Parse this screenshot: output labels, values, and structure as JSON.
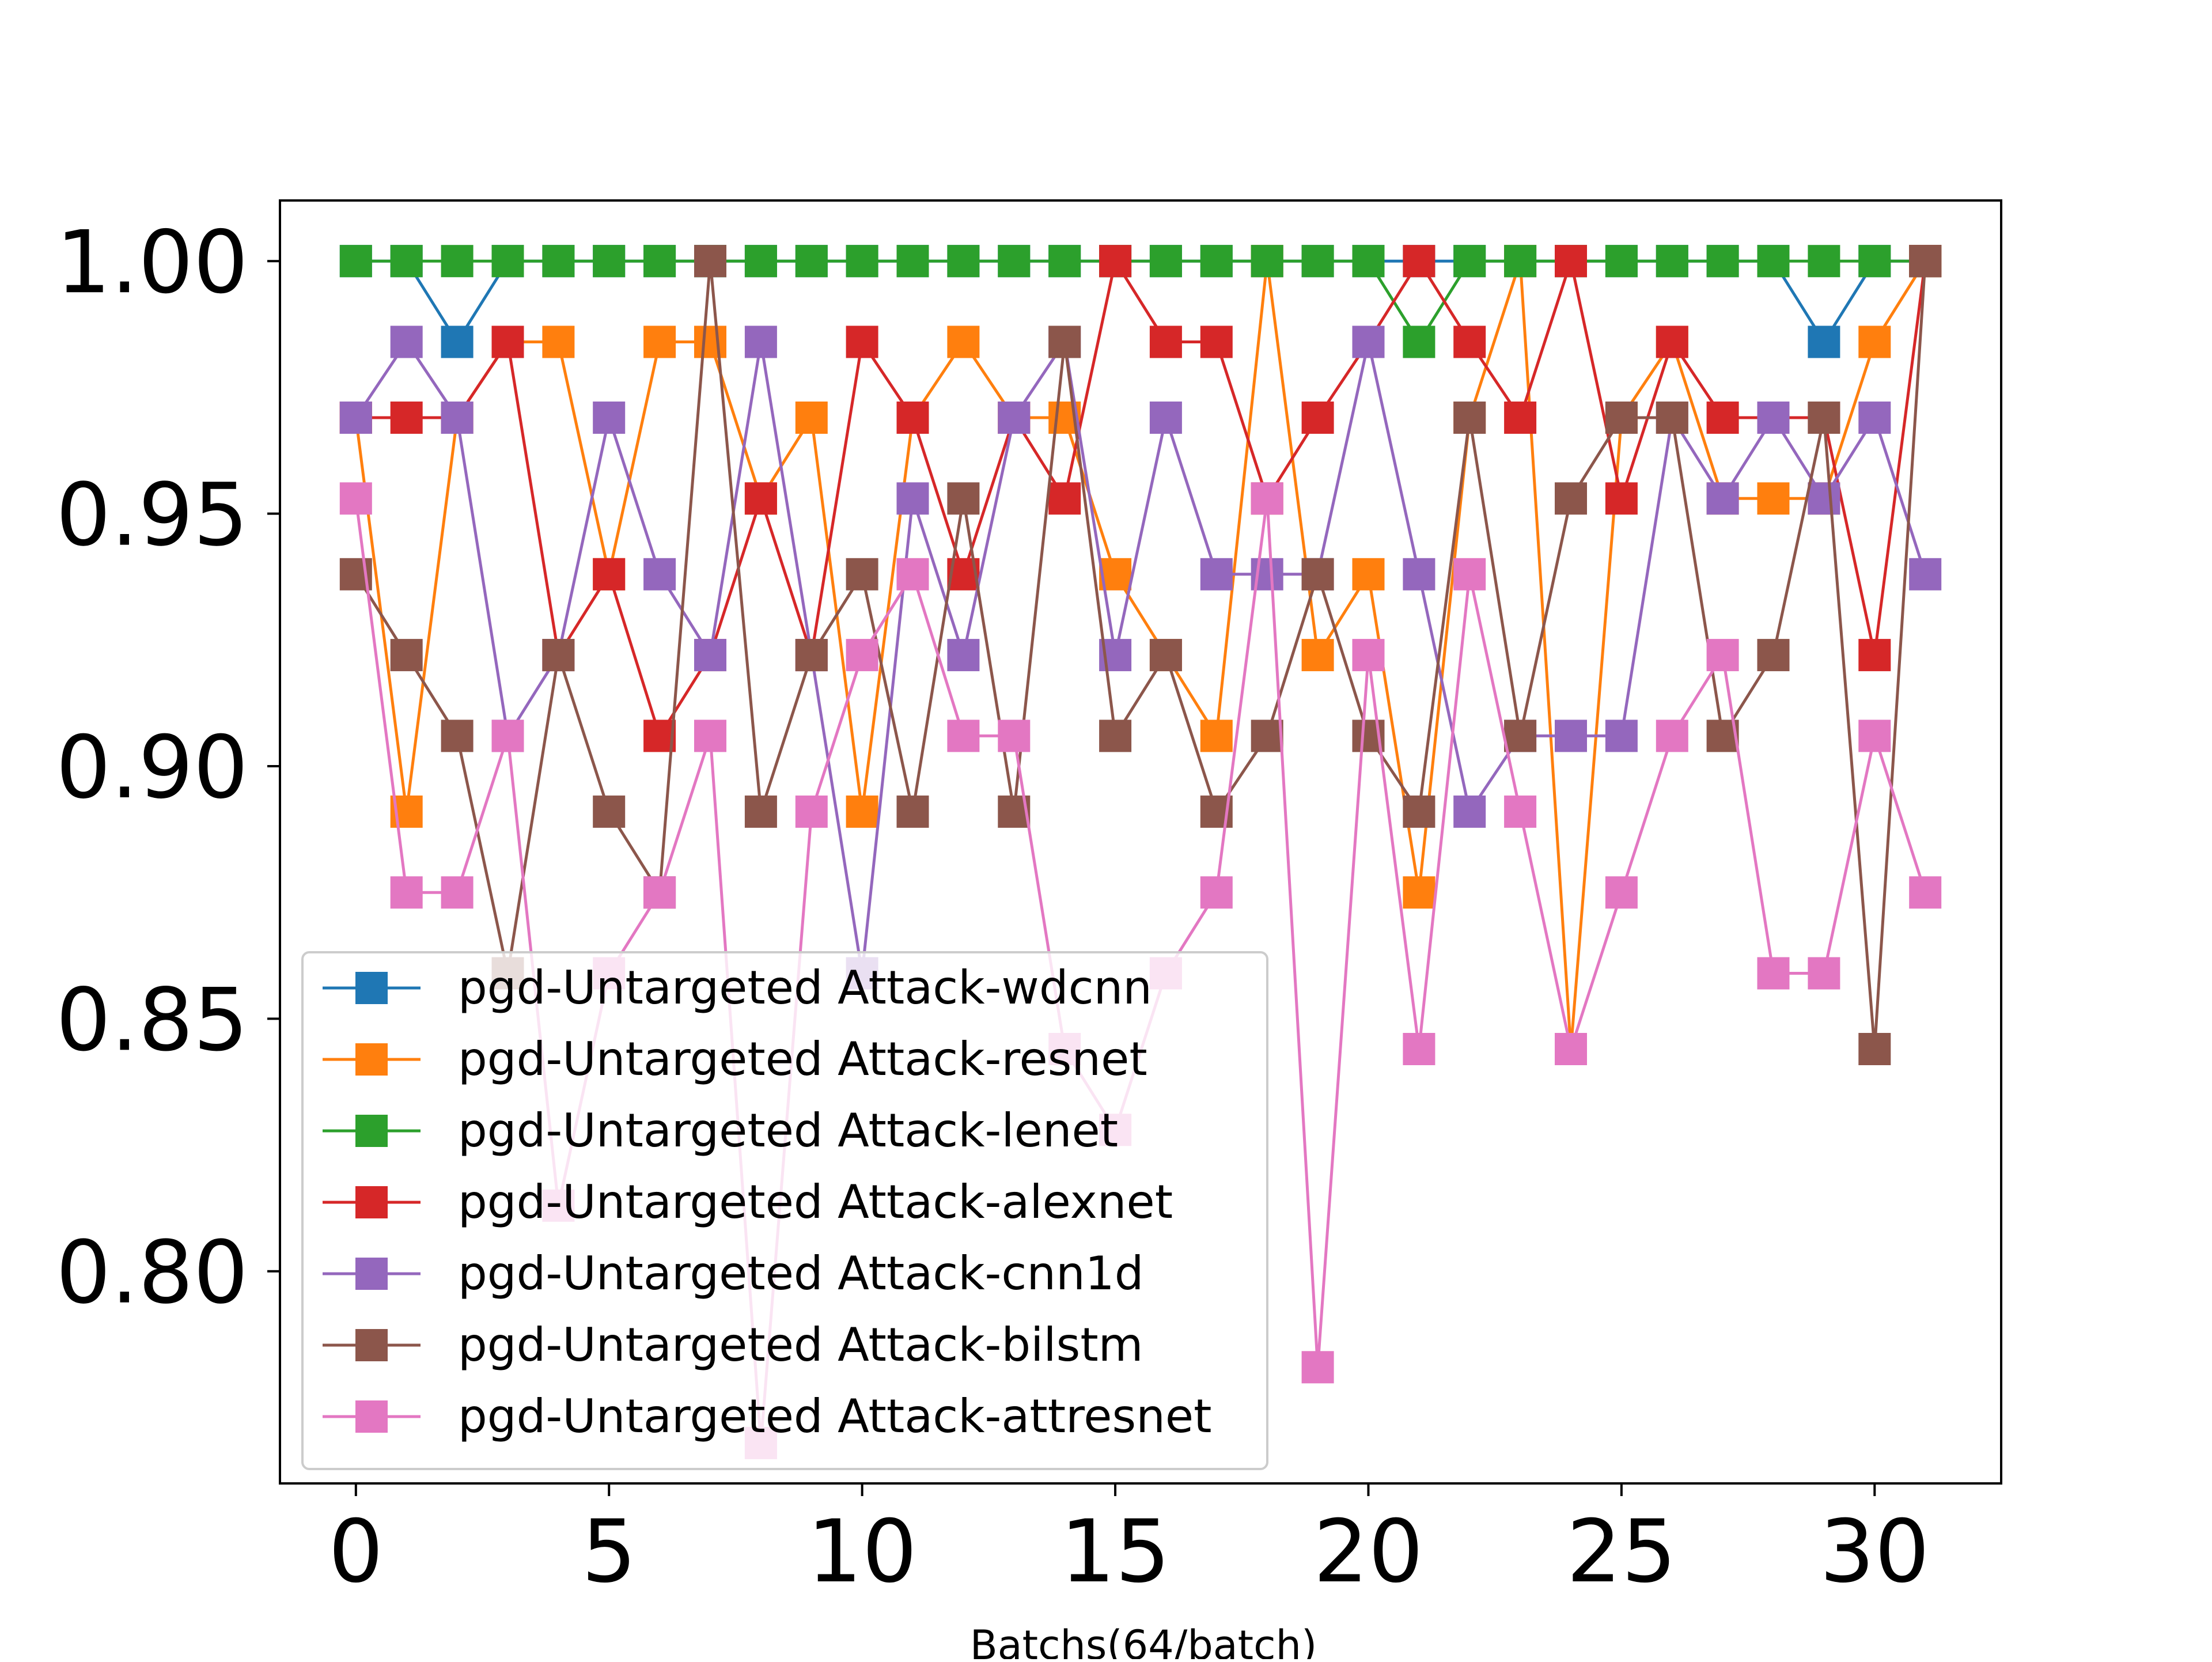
{
  "chart_data": {
    "type": "line",
    "title": "",
    "xlabel": "Batchs(64/batch)",
    "ylabel": "",
    "xlim": [
      -1.5,
      32.5
    ],
    "ylim": [
      0.758,
      1.012
    ],
    "x_ticks": [
      0,
      5,
      10,
      15,
      20,
      25,
      30
    ],
    "x_tick_labels": [
      "0",
      "5",
      "10",
      "15",
      "20",
      "25",
      "30"
    ],
    "y_ticks": [
      0.8,
      0.85,
      0.9,
      0.95,
      1.0
    ],
    "y_tick_labels": [
      "0.80",
      "0.85",
      "0.90",
      "0.95",
      "1.00"
    ],
    "legend_position": "lower-left",
    "marker": "square",
    "x": [
      0,
      1,
      2,
      3,
      4,
      5,
      6,
      7,
      8,
      9,
      10,
      11,
      12,
      13,
      14,
      15,
      16,
      17,
      18,
      19,
      20,
      21,
      22,
      23,
      24,
      25,
      26,
      27,
      28,
      29,
      30,
      31
    ],
    "series": [
      {
        "name": "pgd-Untargeted Attack-wdcnn",
        "color": "#1f77b4",
        "values": [
          1.0,
          1.0,
          0.984,
          1.0,
          1.0,
          1.0,
          1.0,
          1.0,
          1.0,
          1.0,
          1.0,
          1.0,
          1.0,
          1.0,
          1.0,
          1.0,
          1.0,
          1.0,
          1.0,
          1.0,
          1.0,
          1.0,
          1.0,
          1.0,
          1.0,
          1.0,
          1.0,
          1.0,
          1.0,
          0.984,
          1.0,
          1.0
        ]
      },
      {
        "name": "pgd-Untargeted Attack-resnet",
        "color": "#ff7f0e",
        "values": [
          0.969,
          0.891,
          0.969,
          0.984,
          0.984,
          0.938,
          0.984,
          0.984,
          0.953,
          0.969,
          0.891,
          0.969,
          0.984,
          0.969,
          0.969,
          0.938,
          0.922,
          0.906,
          1.0,
          0.922,
          0.938,
          0.875,
          0.969,
          1.0,
          0.844,
          0.969,
          0.984,
          0.953,
          0.953,
          0.953,
          0.984,
          1.0
        ]
      },
      {
        "name": "pgd-Untargeted Attack-lenet",
        "color": "#2ca02c",
        "values": [
          1.0,
          1.0,
          1.0,
          1.0,
          1.0,
          1.0,
          1.0,
          1.0,
          1.0,
          1.0,
          1.0,
          1.0,
          1.0,
          1.0,
          1.0,
          1.0,
          1.0,
          1.0,
          1.0,
          1.0,
          1.0,
          0.984,
          1.0,
          1.0,
          1.0,
          1.0,
          1.0,
          1.0,
          1.0,
          1.0,
          1.0,
          1.0
        ]
      },
      {
        "name": "pgd-Untargeted Attack-alexnet",
        "color": "#d62728",
        "values": [
          0.969,
          0.969,
          0.969,
          0.984,
          0.922,
          0.938,
          0.906,
          0.922,
          0.953,
          0.922,
          0.984,
          0.969,
          0.938,
          0.969,
          0.953,
          1.0,
          0.984,
          0.984,
          0.953,
          0.969,
          0.984,
          1.0,
          0.984,
          0.969,
          1.0,
          0.953,
          0.984,
          0.969,
          0.969,
          0.969,
          0.922,
          1.0
        ]
      },
      {
        "name": "pgd-Untargeted Attack-cnn1d",
        "color": "#9467bd",
        "values": [
          0.969,
          0.984,
          0.969,
          0.906,
          0.922,
          0.969,
          0.938,
          0.922,
          0.984,
          0.922,
          0.859,
          0.953,
          0.922,
          0.969,
          0.984,
          0.922,
          0.969,
          0.938,
          0.938,
          0.938,
          0.984,
          0.938,
          0.891,
          0.906,
          0.906,
          0.906,
          0.969,
          0.953,
          0.969,
          0.953,
          0.969,
          0.938
        ]
      },
      {
        "name": "pgd-Untargeted Attack-bilstm",
        "color": "#8c564b",
        "values": [
          0.938,
          0.922,
          0.906,
          0.859,
          0.922,
          0.891,
          0.875,
          1.0,
          0.891,
          0.922,
          0.938,
          0.891,
          0.953,
          0.891,
          0.984,
          0.906,
          0.922,
          0.891,
          0.906,
          0.938,
          0.906,
          0.891,
          0.969,
          0.906,
          0.953,
          0.969,
          0.969,
          0.906,
          0.922,
          0.969,
          0.844,
          1.0
        ]
      },
      {
        "name": "pgd-Untargeted Attack-attresnet",
        "color": "#e377c2",
        "values": [
          0.953,
          0.875,
          0.875,
          0.906,
          0.813,
          0.859,
          0.875,
          0.906,
          0.766,
          0.891,
          0.922,
          0.938,
          0.906,
          0.906,
          0.844,
          0.828,
          0.859,
          0.875,
          0.953,
          0.781,
          0.922,
          0.844,
          0.938,
          0.891,
          0.844,
          0.875,
          0.906,
          0.922,
          0.859,
          0.859,
          0.906,
          0.875
        ]
      }
    ]
  }
}
